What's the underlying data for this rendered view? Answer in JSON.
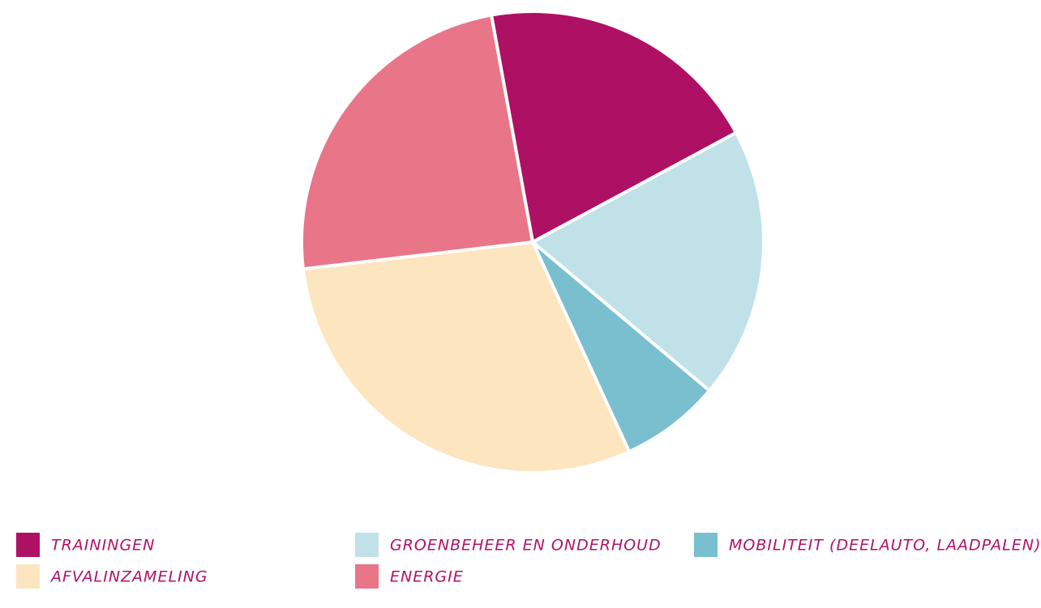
{
  "chart_data": {
    "type": "pie",
    "categories": [
      "TRAININGEN",
      "GROENBEHEER EN ONDERHOUD",
      "MOBILITEIT (DEELAUTO, LAADPALEN)",
      "AFVALINZAMELING",
      "ENERGIE"
    ],
    "values": [
      20,
      19,
      7,
      30,
      24
    ],
    "colors": [
      "#ae1164",
      "#c0e1e8",
      "#79bfd0",
      "#fde5bf",
      "#e97589"
    ]
  }
}
